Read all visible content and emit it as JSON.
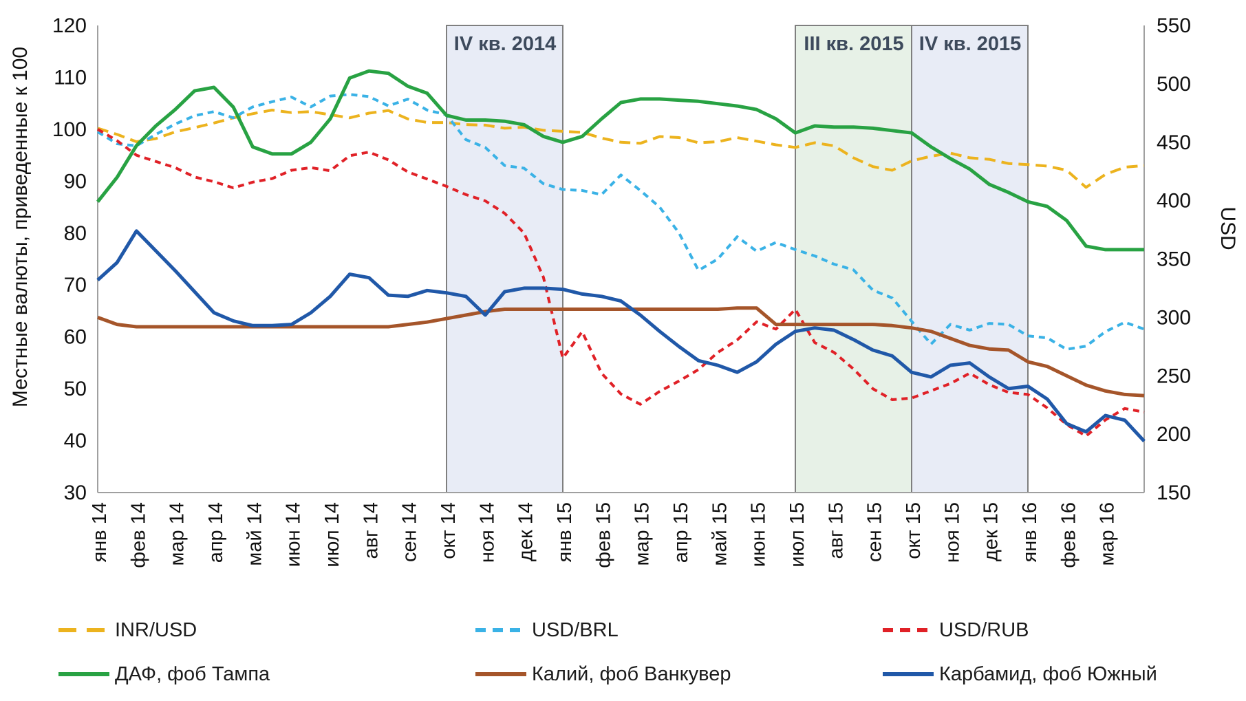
{
  "chart_data": {
    "type": "line",
    "title": "",
    "left_axis": {
      "label": "Местные валюты, приведенные к 100",
      "min": 30,
      "max": 120,
      "ticks": [
        120,
        110,
        100,
        90,
        80,
        70,
        60,
        50,
        40,
        30
      ]
    },
    "right_axis": {
      "label": "USD",
      "min": 150,
      "max": 550,
      "ticks": [
        550,
        500,
        450,
        400,
        350,
        300,
        250,
        200,
        150
      ]
    },
    "x_labels": [
      "янв 14",
      "фев 14",
      "мар 14",
      "апр 14",
      "май 14",
      "июн 14",
      "июл 14",
      "авг 14",
      "сен 14",
      "окт 14",
      "ноя 14",
      "дек 14",
      "янв 15",
      "фев 15",
      "мар 15",
      "апр 15",
      "май 15",
      "июн 15",
      "июл 15",
      "авг 15",
      "сен 15",
      "окт 15",
      "ноя 15",
      "дек 15",
      "янв 16",
      "фев 16",
      "мар 16"
    ],
    "x_months_total": 27,
    "x_start": 0,
    "x_step": 0.5,
    "grid": false,
    "regions": [
      {
        "label": "IV кв. 2014",
        "start_month": 9,
        "end_month": 12,
        "fill": "#e8ecf6"
      },
      {
        "label": "III кв. 2015",
        "start_month": 18,
        "end_month": 21,
        "fill": "#e7f1e7"
      },
      {
        "label": "IV кв. 2015",
        "start_month": 21,
        "end_month": 24,
        "fill": "#e8ecf6"
      }
    ],
    "series": [
      {
        "id": "inr-usd",
        "name": "INR/USD",
        "axis": "left",
        "color": "#ecb31e",
        "dash": "16,9",
        "legend_dash": "26,15",
        "width": 4,
        "values": [
          100.2,
          99.0,
          97.6,
          98.2,
          99.5,
          100.3,
          101.2,
          102.2,
          103.0,
          103.7,
          103.2,
          103.4,
          102.8,
          102.2,
          103.1,
          103.6,
          102.0,
          101.3,
          101.3,
          100.9,
          100.8,
          100.2,
          100.4,
          99.8,
          99.6,
          99.4,
          98.3,
          97.5,
          97.3,
          98.6,
          98.4,
          97.4,
          97.6,
          98.4,
          97.7,
          97.0,
          96.5,
          97.4,
          96.8,
          94.5,
          92.8,
          92.1,
          93.9,
          94.8,
          95.4,
          94.5,
          94.2,
          93.4,
          93.2,
          92.9,
          92.1,
          88.8,
          91.3,
          92.7,
          93.0
        ]
      },
      {
        "id": "usd-brl",
        "name": "USD/BRL",
        "axis": "left",
        "color": "#3ab2e6",
        "dash": "9,7",
        "legend_dash": "15,10",
        "width": 4,
        "values": [
          99.5,
          97.2,
          96.8,
          99.0,
          101.0,
          102.6,
          103.4,
          102.2,
          104.3,
          105.3,
          106.2,
          104.3,
          106.4,
          106.7,
          106.3,
          104.5,
          105.8,
          103.7,
          102.8,
          98.0,
          96.5,
          93.0,
          92.5,
          89.5,
          88.4,
          88.2,
          87.4,
          91.2,
          88.2,
          85.0,
          80.0,
          72.8,
          75.0,
          79.3,
          76.5,
          78.2,
          76.8,
          75.6,
          74.0,
          72.9,
          69.0,
          67.5,
          63.0,
          58.6,
          62.4,
          61.3,
          62.6,
          62.4,
          60.2,
          59.8,
          57.6,
          58.2,
          61.0,
          62.8,
          61.5
        ]
      },
      {
        "id": "usd-rub",
        "name": "USD/RUB",
        "axis": "left",
        "color": "#e02127",
        "dash": "9,7",
        "legend_dash": "15,10",
        "width": 4,
        "values": [
          100.0,
          97.8,
          95.0,
          93.8,
          92.6,
          90.8,
          89.9,
          88.7,
          89.8,
          90.5,
          92.1,
          92.6,
          92.0,
          94.9,
          95.6,
          94.1,
          91.8,
          90.4,
          89.0,
          87.4,
          86.2,
          83.8,
          80.0,
          71.5,
          55.9,
          61.0,
          53.0,
          49.0,
          47.0,
          49.5,
          51.5,
          53.7,
          57.0,
          59.4,
          62.9,
          61.5,
          65.3,
          58.9,
          57.0,
          53.8,
          50.0,
          47.9,
          48.2,
          49.6,
          51.0,
          53.0,
          50.8,
          49.3,
          48.9,
          46.3,
          43.1,
          40.9,
          44.0,
          46.2,
          45.5
        ]
      },
      {
        "id": "dap-tampa",
        "name": "ДАФ, фоб Тампа",
        "axis": "right",
        "color": "#28a243",
        "dash": null,
        "legend_dash": null,
        "width": 5,
        "values": [
          399,
          420,
          447,
          464,
          478,
          494,
          497,
          480,
          446,
          440,
          440,
          450,
          470,
          505,
          511,
          509,
          498,
          492,
          473,
          469,
          469,
          468,
          465,
          455,
          450,
          455,
          470,
          484,
          487,
          487,
          486,
          485,
          483,
          481,
          478,
          470,
          458,
          464,
          463,
          463,
          462,
          460,
          458,
          446,
          436,
          427,
          414,
          407,
          399,
          395,
          383,
          361,
          358,
          358,
          358
        ]
      },
      {
        "id": "potash-vancouver",
        "name": "Калий, фоб Ванкувер",
        "axis": "right",
        "color": "#a5552a",
        "dash": null,
        "legend_dash": null,
        "width": 5,
        "values": [
          300,
          294,
          292,
          292,
          292,
          292,
          292,
          292,
          292,
          292,
          292,
          292,
          292,
          292,
          292,
          292,
          294,
          296,
          299,
          302,
          305,
          307,
          307,
          307,
          307,
          307,
          307,
          307,
          307,
          307,
          307,
          307,
          307,
          308,
          308,
          294,
          294,
          294,
          294,
          294,
          294,
          293,
          291,
          288,
          282,
          276,
          273,
          272,
          262,
          258,
          250,
          242,
          237,
          234,
          233
        ]
      },
      {
        "id": "urea-yuzhny",
        "name": "Карбамид, фоб Южный",
        "axis": "right",
        "color": "#2058a8",
        "dash": null,
        "legend_dash": null,
        "width": 5,
        "values": [
          332,
          347,
          374,
          357,
          340,
          322,
          304,
          297,
          293,
          293,
          294,
          304,
          318,
          337,
          334,
          319,
          318,
          323,
          321,
          318,
          302,
          322,
          325,
          325,
          324,
          320,
          318,
          314,
          302,
          288,
          275,
          263,
          259,
          253,
          262,
          277,
          288,
          291,
          289,
          281,
          272,
          267,
          253,
          249,
          259,
          261,
          249,
          239,
          241,
          230,
          209,
          202,
          216,
          212,
          194
        ]
      }
    ],
    "legend_layout": [
      [
        0,
        1,
        2
      ],
      [
        3,
        4,
        5
      ]
    ]
  },
  "layout_colors": {
    "axis_line": "#a0a0a0",
    "region_border": "#7f7f7f",
    "tick_text": "#111111",
    "region_label_text": "#3d4a5c"
  }
}
